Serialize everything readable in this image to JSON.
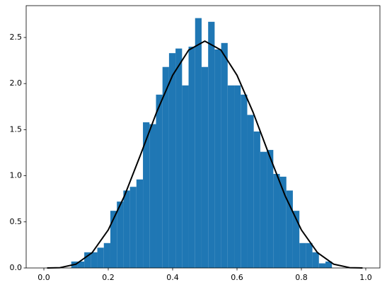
{
  "chart_data": {
    "type": "histogram",
    "bins": [
      0.085,
      0.1053,
      0.1255,
      0.1458,
      0.166,
      0.1863,
      0.2065,
      0.2268,
      0.247,
      0.2673,
      0.2875,
      0.3078,
      0.328,
      0.3483,
      0.3685,
      0.3888,
      0.409,
      0.4293,
      0.4495,
      0.4698,
      0.49,
      0.5103,
      0.5305,
      0.5508,
      0.571,
      0.5913,
      0.6115,
      0.6318,
      0.652,
      0.6723,
      0.6925,
      0.7128,
      0.733,
      0.7533,
      0.7735,
      0.7938,
      0.814,
      0.8343,
      0.8545,
      0.8748,
      0.895
    ],
    "values": [
      0.07,
      0.07,
      0.17,
      0.17,
      0.22,
      0.27,
      0.62,
      0.72,
      0.84,
      0.88,
      0.96,
      1.58,
      1.56,
      1.88,
      2.18,
      2.33,
      2.38,
      1.98,
      2.4,
      2.71,
      2.18,
      2.67,
      2.37,
      2.44,
      1.98,
      1.98,
      1.88,
      1.66,
      1.48,
      1.26,
      1.28,
      1.02,
      0.99,
      0.84,
      0.62,
      0.27,
      0.27,
      0.17,
      0.05,
      0.07
    ],
    "color": "#1f77b4",
    "line": {
      "color": "#000000",
      "x": [
        0.01,
        0.05,
        0.1,
        0.15,
        0.2,
        0.25,
        0.3,
        0.35,
        0.4,
        0.45,
        0.5,
        0.55,
        0.6,
        0.65,
        0.7,
        0.75,
        0.8,
        0.85,
        0.9,
        0.95,
        0.99
      ],
      "values": [
        0.0,
        0.0032,
        0.0413,
        0.1665,
        0.4129,
        0.7787,
        1.2252,
        1.6876,
        2.0902,
        2.3639,
        2.4609,
        2.3639,
        2.0902,
        1.6876,
        1.2252,
        0.7787,
        0.4129,
        0.1665,
        0.0413,
        0.0032,
        0.0
      ]
    },
    "xlim": [
      -0.055,
      1.044
    ],
    "ylim": [
      0,
      2.845
    ],
    "xticks": [
      {
        "value": 0,
        "label": "0.0"
      },
      {
        "value": 0.2,
        "label": "0.2"
      },
      {
        "value": 0.4,
        "label": "0.4"
      },
      {
        "value": 0.6,
        "label": "0.6"
      },
      {
        "value": 0.8,
        "label": "0.8"
      },
      {
        "value": 1,
        "label": "1.0"
      }
    ],
    "yticks": [
      {
        "value": 0,
        "label": "0.0"
      },
      {
        "value": 0.5,
        "label": "0.5"
      },
      {
        "value": 1,
        "label": "1.0"
      },
      {
        "value": 1.5,
        "label": "1.5"
      },
      {
        "value": 2,
        "label": "2.0"
      },
      {
        "value": 2.5,
        "label": "2.5"
      }
    ]
  }
}
